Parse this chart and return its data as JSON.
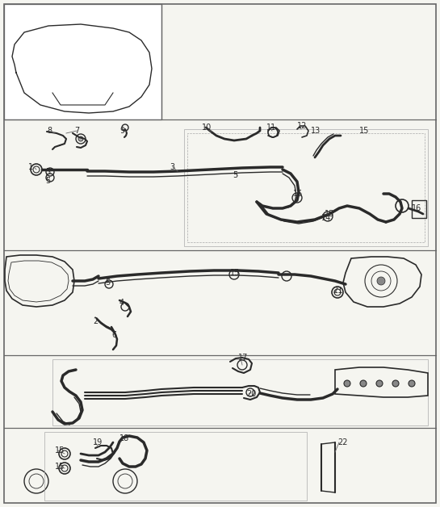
{
  "bg_color": "#f5f5f0",
  "line_color": "#2a2a2a",
  "border_color": "#555555",
  "figure_width": 5.45,
  "figure_height": 6.28,
  "dpi": 100
}
